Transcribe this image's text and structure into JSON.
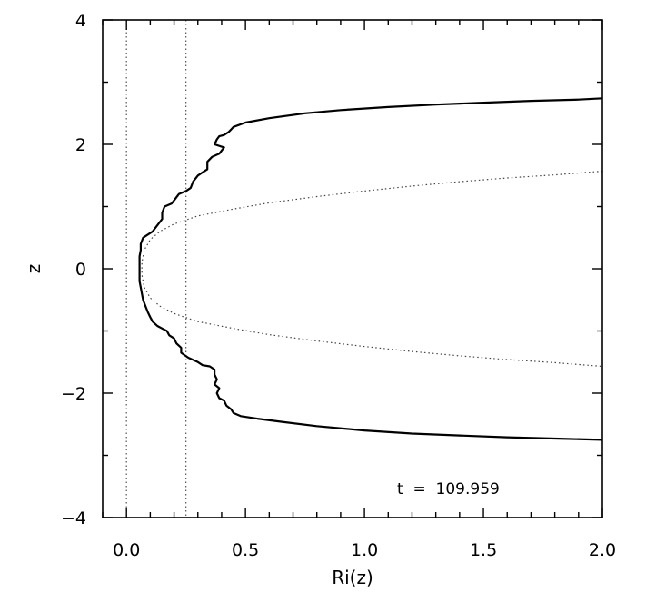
{
  "chart_data": {
    "type": "line",
    "xlabel": "Ri(z)",
    "ylabel": "z",
    "xlim": [
      -0.1,
      2.0
    ],
    "ylim": [
      -4,
      4
    ],
    "x_ticks": [
      0.0,
      0.5,
      1.0,
      1.5,
      2.0
    ],
    "x_tick_labels": [
      "0.0",
      "0.5",
      "1.0",
      "1.5",
      "2.0"
    ],
    "y_ticks": [
      -4,
      -2,
      0,
      2,
      4
    ],
    "y_tick_labels": [
      "−4",
      "−2",
      "0",
      "2",
      "4"
    ],
    "grid": false,
    "reference_lines": [
      {
        "style": "dotted",
        "orientation": "vertical",
        "x": 0.0
      },
      {
        "style": "dotted",
        "orientation": "vertical",
        "x": 0.25
      }
    ],
    "annotation": "t  =  109.959",
    "series": [
      {
        "style": "solid",
        "points": [
          [
            2.0,
            -2.75
          ],
          [
            1.8,
            -2.73
          ],
          [
            1.6,
            -2.71
          ],
          [
            1.4,
            -2.68
          ],
          [
            1.2,
            -2.65
          ],
          [
            1.0,
            -2.6
          ],
          [
            0.8,
            -2.53
          ],
          [
            0.65,
            -2.46
          ],
          [
            0.55,
            -2.41
          ],
          [
            0.48,
            -2.37
          ],
          [
            0.45,
            -2.32
          ],
          [
            0.44,
            -2.26
          ],
          [
            0.42,
            -2.2
          ],
          [
            0.41,
            -2.12
          ],
          [
            0.39,
            -2.08
          ],
          [
            0.38,
            -2.0
          ],
          [
            0.39,
            -1.92
          ],
          [
            0.37,
            -1.86
          ],
          [
            0.38,
            -1.78
          ],
          [
            0.37,
            -1.7
          ],
          [
            0.37,
            -1.62
          ],
          [
            0.35,
            -1.57
          ],
          [
            0.32,
            -1.55
          ],
          [
            0.3,
            -1.5
          ],
          [
            0.26,
            -1.43
          ],
          [
            0.23,
            -1.35
          ],
          [
            0.23,
            -1.27
          ],
          [
            0.21,
            -1.2
          ],
          [
            0.2,
            -1.12
          ],
          [
            0.18,
            -1.07
          ],
          [
            0.17,
            -1.0
          ],
          [
            0.15,
            -0.96
          ],
          [
            0.13,
            -0.92
          ],
          [
            0.11,
            -0.85
          ],
          [
            0.1,
            -0.78
          ],
          [
            0.09,
            -0.7
          ],
          [
            0.08,
            -0.6
          ],
          [
            0.07,
            -0.5
          ],
          [
            0.065,
            -0.4
          ],
          [
            0.06,
            -0.3
          ],
          [
            0.055,
            -0.2
          ],
          [
            0.055,
            -0.1
          ],
          [
            0.055,
            0.0
          ],
          [
            0.055,
            0.1
          ],
          [
            0.055,
            0.2
          ],
          [
            0.06,
            0.3
          ],
          [
            0.06,
            0.4
          ],
          [
            0.07,
            0.5
          ],
          [
            0.09,
            0.55
          ],
          [
            0.11,
            0.6
          ],
          [
            0.13,
            0.7
          ],
          [
            0.15,
            0.8
          ],
          [
            0.15,
            0.9
          ],
          [
            0.16,
            1.0
          ],
          [
            0.19,
            1.05
          ],
          [
            0.2,
            1.1
          ],
          [
            0.22,
            1.2
          ],
          [
            0.25,
            1.25
          ],
          [
            0.27,
            1.3
          ],
          [
            0.28,
            1.4
          ],
          [
            0.3,
            1.5
          ],
          [
            0.32,
            1.55
          ],
          [
            0.34,
            1.6
          ],
          [
            0.34,
            1.72
          ],
          [
            0.36,
            1.8
          ],
          [
            0.39,
            1.85
          ],
          [
            0.4,
            1.9
          ],
          [
            0.41,
            1.95
          ],
          [
            0.37,
            2.0
          ],
          [
            0.38,
            2.08
          ],
          [
            0.39,
            2.13
          ],
          [
            0.41,
            2.15
          ],
          [
            0.43,
            2.2
          ],
          [
            0.45,
            2.28
          ],
          [
            0.5,
            2.35
          ],
          [
            0.6,
            2.42
          ],
          [
            0.75,
            2.5
          ],
          [
            0.9,
            2.55
          ],
          [
            1.1,
            2.6
          ],
          [
            1.3,
            2.64
          ],
          [
            1.5,
            2.67
          ],
          [
            1.7,
            2.7
          ],
          [
            1.9,
            2.72
          ],
          [
            2.0,
            2.74
          ]
        ]
      },
      {
        "style": "dotted",
        "points": [
          [
            2.0,
            1.57
          ],
          [
            1.8,
            1.51
          ],
          [
            1.6,
            1.46
          ],
          [
            1.4,
            1.4
          ],
          [
            1.2,
            1.33
          ],
          [
            1.0,
            1.25
          ],
          [
            0.8,
            1.16
          ],
          [
            0.6,
            1.06
          ],
          [
            0.45,
            0.96
          ],
          [
            0.3,
            0.85
          ],
          [
            0.2,
            0.72
          ],
          [
            0.14,
            0.6
          ],
          [
            0.1,
            0.47
          ],
          [
            0.075,
            0.3
          ],
          [
            0.065,
            0.1
          ],
          [
            0.065,
            -0.1
          ],
          [
            0.075,
            -0.3
          ],
          [
            0.1,
            -0.47
          ],
          [
            0.14,
            -0.6
          ],
          [
            0.2,
            -0.72
          ],
          [
            0.3,
            -0.85
          ],
          [
            0.45,
            -0.96
          ],
          [
            0.6,
            -1.06
          ],
          [
            0.8,
            -1.16
          ],
          [
            1.0,
            -1.25
          ],
          [
            1.2,
            -1.33
          ],
          [
            1.4,
            -1.4
          ],
          [
            1.6,
            -1.46
          ],
          [
            1.8,
            -1.51
          ],
          [
            2.0,
            -1.57
          ]
        ]
      }
    ]
  }
}
